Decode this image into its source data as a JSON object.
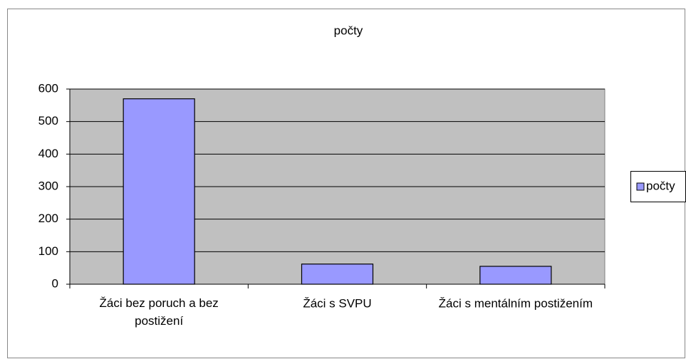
{
  "chart_data": {
    "type": "bar",
    "title": "počty",
    "categories": [
      "Žáci bez poruch a bez postižení",
      "Žáci s SVPU",
      "Žáci s mentálním postižením"
    ],
    "series": [
      {
        "name": "počty",
        "color": "#9999ff",
        "values": [
          570,
          62,
          55
        ]
      }
    ],
    "ylim": [
      0,
      600
    ],
    "yticks": [
      0,
      100,
      200,
      300,
      400,
      500,
      600
    ],
    "grid": true,
    "legend": "right"
  }
}
